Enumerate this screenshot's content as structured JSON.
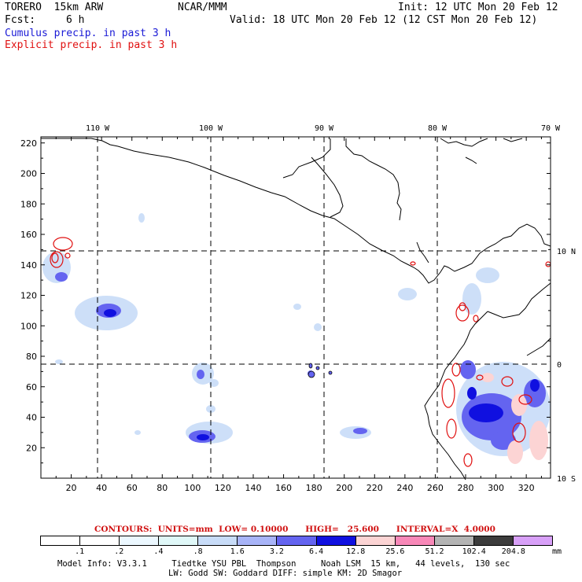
{
  "header": {
    "model": "TORERO  15km ARW",
    "center": "NCAR/MMM",
    "init": "Init: 12 UTC Mon 20 Feb 12",
    "fcst_label": "Fcst:",
    "fcst_value": "6 h",
    "valid": "Valid: 18 UTC Mon 20 Feb 12 (12 CST Mon 20 Feb 12)",
    "field1": "Cumulus precip. in past 3 h",
    "field2": "Explicit precip. in past 3 h"
  },
  "map": {
    "lon_labels": [
      "110 W",
      "100 W",
      "90 W",
      "80 W",
      "70 W"
    ],
    "lat_labels": [
      "10 N",
      "0",
      "10 S"
    ],
    "x_ticks": [
      "20",
      "40",
      "60",
      "80",
      "100",
      "120",
      "140",
      "160",
      "180",
      "200",
      "220",
      "240",
      "260",
      "280",
      "300",
      "320"
    ],
    "y_ticks": [
      "20",
      "40",
      "60",
      "80",
      "100",
      "120",
      "140",
      "160",
      "180",
      "200",
      "220"
    ]
  },
  "contours_line": "CONTOURS:  UNITS=mm  LOW= 0.10000      HIGH=   25.600      INTERVAL=X  4.0000",
  "colorbar": {
    "labels": [
      ".1",
      ".2",
      ".4",
      ".8",
      "1.6",
      "3.2",
      "6.4",
      "12.8",
      "25.6",
      "51.2",
      "102.4",
      "204.8"
    ],
    "unit": "mm",
    "colors": [
      "#ffffff",
      "#ffffff",
      "#ecf8ff",
      "#e0f8f8",
      "#c8dcf8",
      "#a8b4f8",
      "#6464f0",
      "#1010e0",
      "#fcd4d4",
      "#f888b8",
      "#b4b4b4",
      "#3c3c3c",
      "#d8a0f8"
    ]
  },
  "footer": {
    "line1": "Model Info: V3.3.1     Tiedtke YSU PBL  Thompson     Noah LSM  15 km,   44 levels,  130 sec",
    "line2": "LW: Godd SW: Goddard DIFF: simple KM: 2D Smagor"
  }
}
